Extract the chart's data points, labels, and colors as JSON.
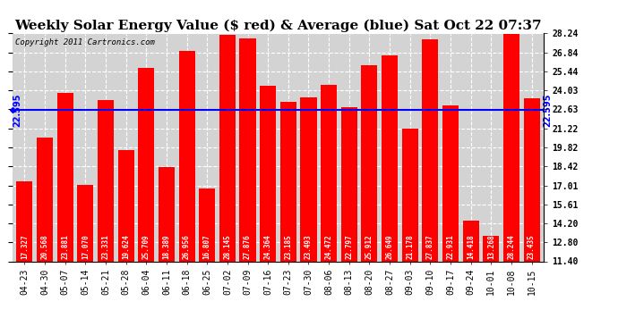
{
  "title": "Weekly Solar Energy Value ($ red) & Average (blue) Sat Oct 22 07:37",
  "copyright": "Copyright 2011 Cartronics.com",
  "categories": [
    "04-23",
    "04-30",
    "05-07",
    "05-14",
    "05-21",
    "05-28",
    "06-04",
    "06-11",
    "06-18",
    "06-25",
    "07-02",
    "07-09",
    "07-16",
    "07-23",
    "07-30",
    "08-06",
    "08-13",
    "08-20",
    "08-27",
    "09-03",
    "09-10",
    "09-17",
    "09-24",
    "10-01",
    "10-08",
    "10-15"
  ],
  "values": [
    17.327,
    20.568,
    23.881,
    17.07,
    23.331,
    19.624,
    25.709,
    18.389,
    26.956,
    16.807,
    28.145,
    27.876,
    24.364,
    23.185,
    23.493,
    24.472,
    22.797,
    25.912,
    26.649,
    21.178,
    27.837,
    22.931,
    14.418,
    13.268,
    28.244,
    23.435
  ],
  "average": 22.595,
  "bar_color": "#ff0000",
  "avg_line_color": "#0000ff",
  "background_color": "#ffffff",
  "plot_bg_color": "#d3d3d3",
  "ylim_min": 11.4,
  "ylim_max": 28.24,
  "yticks_right": [
    11.4,
    12.8,
    14.2,
    15.61,
    17.01,
    18.42,
    19.82,
    21.22,
    22.63,
    24.03,
    25.44,
    26.84,
    28.24
  ],
  "title_fontsize": 11,
  "copyright_fontsize": 6.5,
  "tick_fontsize": 7,
  "value_fontsize": 5.5,
  "avg_label": "22.595",
  "grid_color": "#ffffff",
  "grid_style": "--",
  "grid_alpha": 1.0
}
